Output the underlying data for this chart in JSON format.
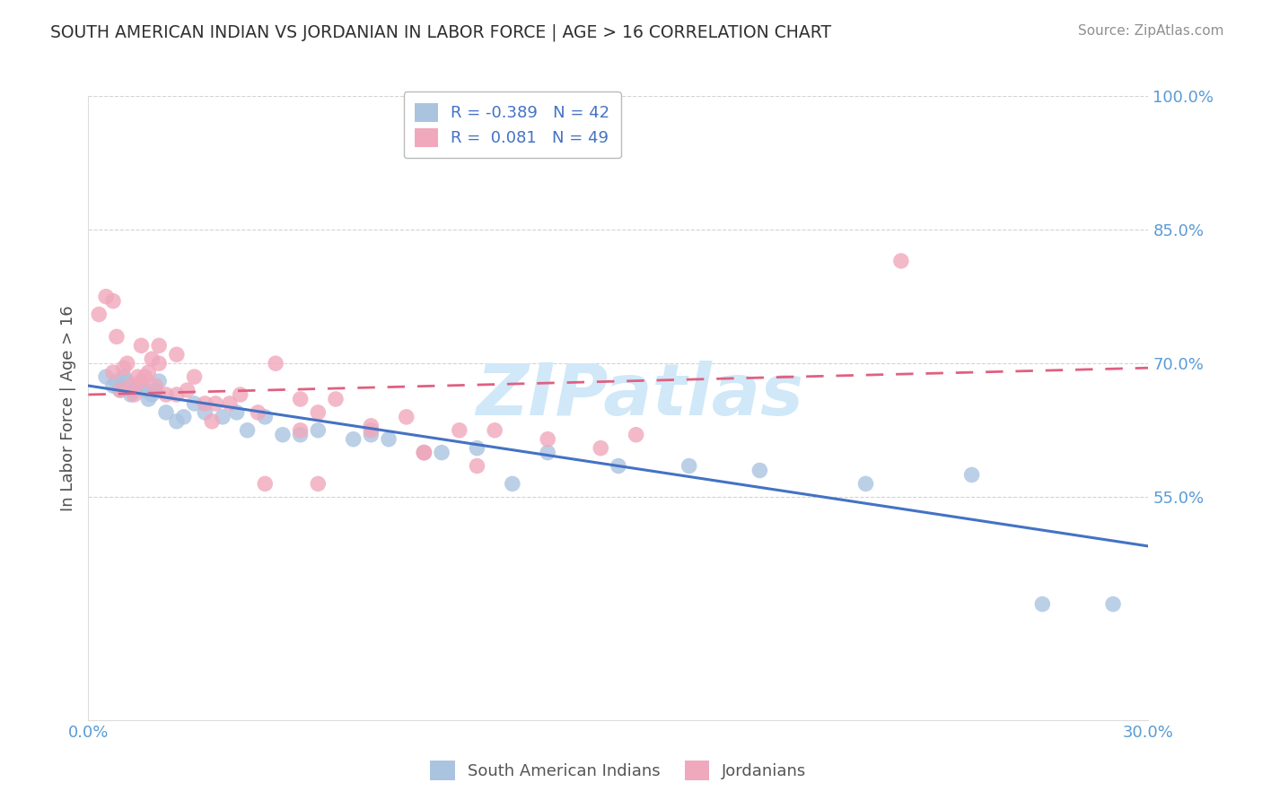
{
  "title": "SOUTH AMERICAN INDIAN VS JORDANIAN IN LABOR FORCE | AGE > 16 CORRELATION CHART",
  "source": "Source: ZipAtlas.com",
  "ylabel": "In Labor Force | Age > 16",
  "xlabel": "",
  "legend_label_bottom": [
    "South American Indians",
    "Jordanians"
  ],
  "r_blue": -0.389,
  "n_blue": 42,
  "r_pink": 0.081,
  "n_pink": 49,
  "xlim": [
    0.0,
    0.3
  ],
  "ylim": [
    0.3,
    1.0
  ],
  "xticks": [
    0.0,
    0.3
  ],
  "yticks": [
    0.55,
    0.7,
    0.85,
    1.0
  ],
  "ytick_labels": [
    "55.0%",
    "70.0%",
    "85.0%",
    "100.0%"
  ],
  "xtick_labels": [
    "0.0%",
    "30.0%"
  ],
  "blue_scatter_x": [
    0.005,
    0.007,
    0.008,
    0.009,
    0.01,
    0.011,
    0.012,
    0.013,
    0.014,
    0.015,
    0.016,
    0.017,
    0.018,
    0.019,
    0.02,
    0.022,
    0.025,
    0.027,
    0.03,
    0.033,
    0.038,
    0.042,
    0.045,
    0.05,
    0.055,
    0.06,
    0.065,
    0.075,
    0.085,
    0.095,
    0.11,
    0.13,
    0.15,
    0.17,
    0.19,
    0.22,
    0.25,
    0.27,
    0.08,
    0.1,
    0.12,
    0.29
  ],
  "blue_scatter_y": [
    0.685,
    0.675,
    0.68,
    0.67,
    0.685,
    0.68,
    0.665,
    0.67,
    0.675,
    0.675,
    0.67,
    0.66,
    0.665,
    0.67,
    0.68,
    0.645,
    0.635,
    0.64,
    0.655,
    0.645,
    0.64,
    0.645,
    0.625,
    0.64,
    0.62,
    0.62,
    0.625,
    0.615,
    0.615,
    0.6,
    0.605,
    0.6,
    0.585,
    0.585,
    0.58,
    0.565,
    0.575,
    0.43,
    0.62,
    0.6,
    0.565,
    0.43
  ],
  "pink_scatter_x": [
    0.003,
    0.005,
    0.007,
    0.007,
    0.008,
    0.009,
    0.01,
    0.011,
    0.012,
    0.013,
    0.014,
    0.015,
    0.016,
    0.017,
    0.018,
    0.019,
    0.02,
    0.022,
    0.025,
    0.028,
    0.03,
    0.033,
    0.036,
    0.04,
    0.043,
    0.048,
    0.053,
    0.06,
    0.065,
    0.07,
    0.08,
    0.09,
    0.095,
    0.105,
    0.115,
    0.13,
    0.145,
    0.155,
    0.23,
    0.015,
    0.02,
    0.025,
    0.035,
    0.06,
    0.08,
    0.095,
    0.11,
    0.065,
    0.05
  ],
  "pink_scatter_y": [
    0.755,
    0.775,
    0.77,
    0.69,
    0.73,
    0.67,
    0.695,
    0.7,
    0.675,
    0.665,
    0.685,
    0.68,
    0.685,
    0.69,
    0.705,
    0.675,
    0.72,
    0.665,
    0.665,
    0.67,
    0.685,
    0.655,
    0.655,
    0.655,
    0.665,
    0.645,
    0.7,
    0.66,
    0.645,
    0.66,
    0.625,
    0.64,
    0.6,
    0.625,
    0.625,
    0.615,
    0.605,
    0.62,
    0.815,
    0.72,
    0.7,
    0.71,
    0.635,
    0.625,
    0.63,
    0.6,
    0.585,
    0.565,
    0.565
  ],
  "blue_color": "#aac4e0",
  "pink_color": "#f0a8bc",
  "blue_line_color": "#4472c4",
  "pink_line_color": "#e06080",
  "background_color": "#ffffff",
  "watermark_text": "ZIPatlas",
  "watermark_color": "#d0e8f8",
  "grid_color": "#c8c8c8",
  "legend_text_color": "#4472c4",
  "title_color": "#303030",
  "source_color": "#909090",
  "ylabel_color": "#505050",
  "tick_color": "#5b9bd5"
}
